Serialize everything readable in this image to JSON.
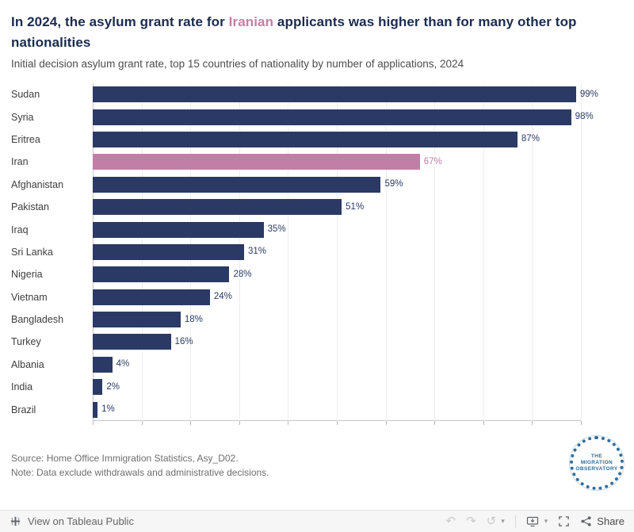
{
  "header": {
    "title_prefix": "In 2024, the asylum grant rate for ",
    "title_highlight": "Iranian",
    "title_suffix": " applicants was higher than for many other top nationalities",
    "subtitle": "Initial decision asylum grant rate, top 15 countries of nationality by number of applications, 2024"
  },
  "chart_data": {
    "type": "bar",
    "orientation": "horizontal",
    "categories": [
      "Sudan",
      "Syria",
      "Eritrea",
      "Iran",
      "Afghanistan",
      "Pakistan",
      "Iraq",
      "Sri Lanka",
      "Nigeria",
      "Vietnam",
      "Bangladesh",
      "Turkey",
      "Albania",
      "India",
      "Brazil"
    ],
    "values": [
      99,
      98,
      87,
      67,
      59,
      51,
      35,
      31,
      28,
      24,
      18,
      16,
      4,
      2,
      1
    ],
    "value_labels": [
      "99%",
      "98%",
      "87%",
      "67%",
      "59%",
      "51%",
      "35%",
      "31%",
      "28%",
      "24%",
      "18%",
      "16%",
      "4%",
      "2%",
      "1%"
    ],
    "highlight_category": "Iran",
    "bar_color": "#2a3a64",
    "highlight_color": "#c17fa7",
    "xlim": [
      0,
      100
    ],
    "grid": true,
    "gridline_step": 10,
    "title": "In 2024, the asylum grant rate for Iranian applicants was higher than for many other top nationalities",
    "subtitle": "Initial decision asylum grant rate, top 15 countries of nationality by number of applications, 2024",
    "xlabel": "",
    "ylabel": ""
  },
  "footer": {
    "source": "Source: Home Office Immigration Statistics, Asy_D02.",
    "note": "Note: Data exclude withdrawals and administrative decisions.",
    "logo_line1": "THE",
    "logo_line2": "MIGRATION",
    "logo_line3": "OBSERVATORY"
  },
  "toolbar": {
    "view_label": "View on Tableau Public",
    "share_label": "Share"
  },
  "icons": {
    "undo": "↶",
    "redo": "↷",
    "reset": "↺",
    "caret": "▾"
  },
  "colors": {
    "title": "#1b2b4d",
    "bar": "#2a3a64",
    "highlight": "#c17fa7"
  }
}
